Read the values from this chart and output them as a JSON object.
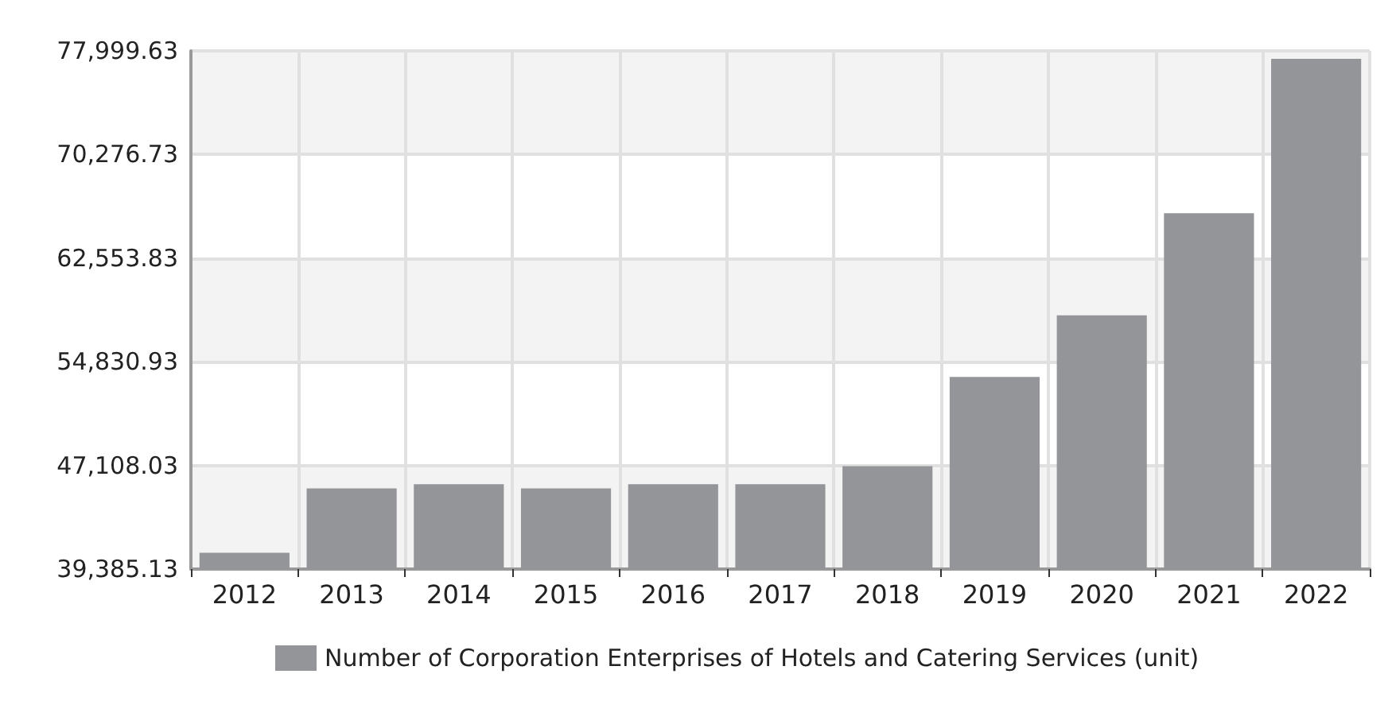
{
  "chart_data": {
    "type": "bar",
    "categories": [
      "2012",
      "2013",
      "2014",
      "2015",
      "2016",
      "2017",
      "2018",
      "2019",
      "2020",
      "2021",
      "2022"
    ],
    "series": [
      {
        "name": "Number of Corporation Enterprises of Hotels and Catering Services (unit)",
        "color": "#939598",
        "values": [
          40600,
          45400,
          45700,
          45400,
          45700,
          45700,
          47050,
          53700,
          58300,
          65900,
          77400
        ]
      }
    ],
    "ylim": [
      39385.13,
      77999.63
    ],
    "yticks": [
      {
        "value": 39385.13,
        "label": "39,385.13"
      },
      {
        "value": 47108.03,
        "label": "47,108.03"
      },
      {
        "value": 54830.93,
        "label": "54,830.93"
      },
      {
        "value": 62553.83,
        "label": "62,553.83"
      },
      {
        "value": 70276.73,
        "label": "70,276.73"
      },
      {
        "value": 77999.63,
        "label": "77,999.63"
      }
    ],
    "grid": true,
    "legend": "bottom"
  }
}
